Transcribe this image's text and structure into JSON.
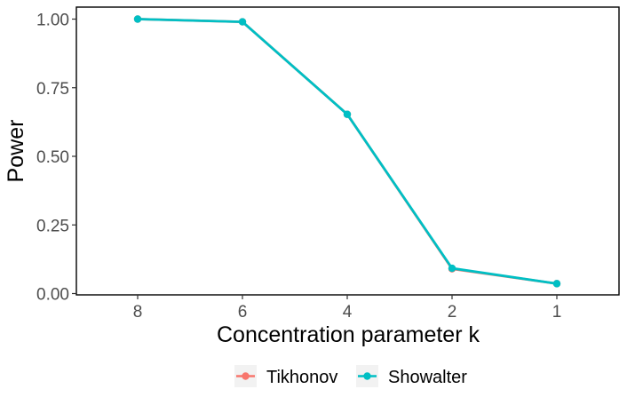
{
  "chart_data": {
    "type": "line",
    "title": "",
    "xlabel": "Concentration parameter k",
    "ylabel": "Power",
    "categories": [
      "8",
      "6",
      "4",
      "2",
      "1"
    ],
    "ylim": [
      0,
      1
    ],
    "yticks": [
      "0.00",
      "0.25",
      "0.50",
      "0.75",
      "1.00"
    ],
    "ytick_values": [
      0,
      0.25,
      0.5,
      0.75,
      1.0
    ],
    "grid": false,
    "legend_position": "bottom",
    "series": [
      {
        "name": "Tikhonov",
        "color": "#F8766D",
        "values": [
          1.0,
          0.99,
          0.653,
          0.09,
          0.036
        ]
      },
      {
        "name": "Showalter",
        "color": "#00BFC4",
        "values": [
          1.0,
          0.99,
          0.653,
          0.092,
          0.036
        ]
      }
    ]
  }
}
